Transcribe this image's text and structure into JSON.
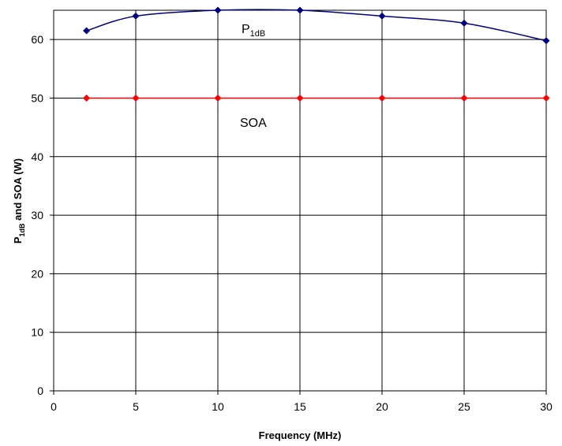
{
  "chart_data": {
    "type": "line",
    "xlabel": "Frequency (MHz)",
    "ylabel": {
      "main": "P",
      "sub": "1dB",
      "rest": " and SOA (W)"
    },
    "xlim": [
      0,
      30
    ],
    "ylim": [
      0,
      65
    ],
    "xticks": [
      0,
      5,
      10,
      15,
      20,
      25,
      30
    ],
    "yticks": [
      0,
      10,
      20,
      30,
      40,
      50,
      60
    ],
    "grid": true,
    "series": [
      {
        "name": "P1dB",
        "label_main": "P",
        "label_sub": "1dB",
        "color": "#000080",
        "marker": "diamond",
        "x": [
          2,
          5,
          10,
          15,
          20,
          25,
          30
        ],
        "y": [
          61.5,
          64,
          65,
          65,
          64,
          62.8,
          59.8
        ]
      },
      {
        "name": "SOA",
        "label_main": "SOA",
        "label_sub": "",
        "color": "#ff0000",
        "marker": "diamond",
        "x": [
          2,
          5,
          10,
          15,
          20,
          25,
          30
        ],
        "y": [
          50,
          50,
          50,
          50,
          50,
          50,
          50
        ]
      }
    ]
  }
}
